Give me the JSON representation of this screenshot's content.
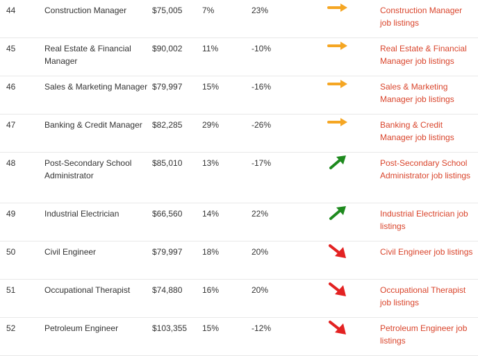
{
  "rows": [
    {
      "rank": "44",
      "title": "Construction Manager",
      "salary": "$75,005",
      "growth": "7%",
      "change": "23%",
      "trend": "flat",
      "link": "Construction Manager job listings"
    },
    {
      "rank": "45",
      "title": "Real Estate & Financial Manager",
      "salary": "$90,002",
      "growth": "11%",
      "change": "-10%",
      "trend": "flat",
      "link": "Real Estate & Financial Manager job listings"
    },
    {
      "rank": "46",
      "title": "Sales & Marketing Manager",
      "salary": "$79,997",
      "growth": "15%",
      "change": "-16%",
      "trend": "flat",
      "link": "Sales & Marketing Manager job listings"
    },
    {
      "rank": "47",
      "title": "Banking & Credit Manager",
      "salary": "$82,285",
      "growth": "29%",
      "change": "-26%",
      "trend": "flat",
      "link": "Banking & Credit Manager job listings"
    },
    {
      "rank": "48",
      "title": "Post-Secondary School Administrator",
      "salary": "$85,010",
      "growth": "13%",
      "change": "-17%",
      "trend": "up",
      "link": "Post-Secondary School Administrator job listings"
    },
    {
      "rank": "49",
      "title": "Industrial Electrician",
      "salary": "$66,560",
      "growth": "14%",
      "change": "22%",
      "trend": "up",
      "link": "Industrial Electrician job listings"
    },
    {
      "rank": "50",
      "title": "Civil Engineer",
      "salary": "$79,997",
      "growth": "18%",
      "change": "20%",
      "trend": "down",
      "link": "Civil Engineer job listings"
    },
    {
      "rank": "51",
      "title": "Occupational Therapist",
      "salary": "$74,880",
      "growth": "16%",
      "change": "20%",
      "trend": "down",
      "link": "Occupational Therapist job listings"
    },
    {
      "rank": "52",
      "title": "Petroleum Engineer",
      "salary": "$103,355",
      "growth": "15%",
      "change": "-12%",
      "trend": "down",
      "link": "Petroleum Engineer job listings"
    }
  ],
  "colors": {
    "link": "#d9442b",
    "flat": "#f5a623",
    "up": "#1e8a1e",
    "down": "#e32222",
    "text": "#333333"
  },
  "icons": {
    "flat": "arrow-right-icon",
    "up": "arrow-up-right-icon",
    "down": "arrow-down-right-icon"
  }
}
